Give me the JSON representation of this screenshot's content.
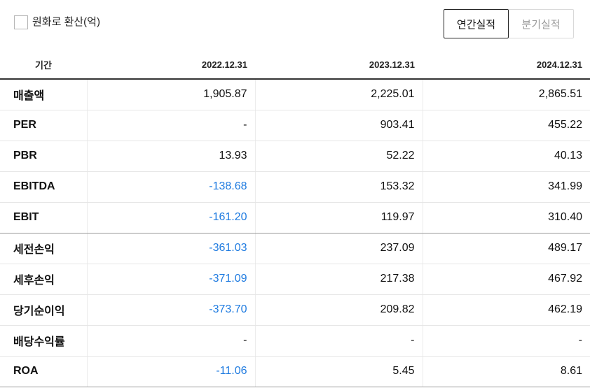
{
  "controls": {
    "convert_label": "원화로 환산(억)",
    "annual_label": "연간실적",
    "quarter_label": "분기실적"
  },
  "table": {
    "period_header": "기간",
    "years": [
      "2022.12.31",
      "2023.12.31",
      "2024.12.31"
    ],
    "rows": [
      {
        "label": "매출액",
        "values": [
          "1,905.87",
          "2,225.01",
          "2,865.51"
        ]
      },
      {
        "label": "PER",
        "values": [
          "-",
          "903.41",
          "455.22"
        ]
      },
      {
        "label": "PBR",
        "values": [
          "13.93",
          "52.22",
          "40.13"
        ]
      },
      {
        "label": "EBITDA",
        "values": [
          "-138.68",
          "153.32",
          "341.99"
        ]
      },
      {
        "label": "EBIT",
        "values": [
          "-161.20",
          "119.97",
          "310.40"
        ]
      },
      {
        "label": "세전손익",
        "values": [
          "-361.03",
          "237.09",
          "489.17"
        ]
      },
      {
        "label": "세후손익",
        "values": [
          "-371.09",
          "217.38",
          "467.92"
        ]
      },
      {
        "label": "당기순이익",
        "values": [
          "-373.70",
          "209.82",
          "462.19"
        ]
      },
      {
        "label": "배당수익률",
        "values": [
          "-",
          "-",
          "-"
        ]
      },
      {
        "label": "ROA",
        "values": [
          "-11.06",
          "5.45",
          "8.61"
        ]
      }
    ]
  },
  "colors": {
    "negative": "#1f7be0"
  }
}
